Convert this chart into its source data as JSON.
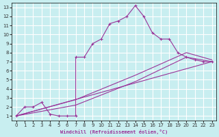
{
  "xlabel": "Windchill (Refroidissement éolien,°C)",
  "background_color": "#c8eef0",
  "grid_color": "#ffffff",
  "line_color": "#993399",
  "xlim": [
    -0.5,
    23.5
  ],
  "ylim": [
    0.5,
    13.5
  ],
  "xticks": [
    0,
    1,
    2,
    3,
    4,
    5,
    6,
    7,
    8,
    9,
    10,
    11,
    12,
    13,
    14,
    15,
    16,
    17,
    18,
    19,
    20,
    21,
    22,
    23
  ],
  "yticks": [
    1,
    2,
    3,
    4,
    5,
    6,
    7,
    8,
    9,
    10,
    11,
    12,
    13
  ],
  "main_line": {
    "x": [
      0,
      1,
      2,
      3,
      4,
      5,
      6,
      7,
      7,
      8,
      9,
      10,
      11,
      12,
      13,
      14,
      15,
      16,
      17,
      18,
      19,
      20,
      21,
      22,
      23
    ],
    "y": [
      1,
      2,
      2,
      2.5,
      1.2,
      1.0,
      1.0,
      1.0,
      7.5,
      7.5,
      9.0,
      9.5,
      11.2,
      11.5,
      12.0,
      13.2,
      12.0,
      10.2,
      9.5,
      9.5,
      8.0,
      7.5,
      7.2,
      7.0,
      7.0
    ]
  },
  "trend_lines": [
    {
      "x": [
        0,
        23
      ],
      "y": [
        1.0,
        7.0
      ]
    },
    {
      "x": [
        0,
        7,
        14,
        20,
        23
      ],
      "y": [
        1.0,
        2.8,
        5.5,
        8.0,
        7.2
      ]
    },
    {
      "x": [
        0,
        7,
        14,
        20,
        23
      ],
      "y": [
        1.0,
        2.2,
        4.8,
        7.5,
        7.0
      ]
    }
  ]
}
